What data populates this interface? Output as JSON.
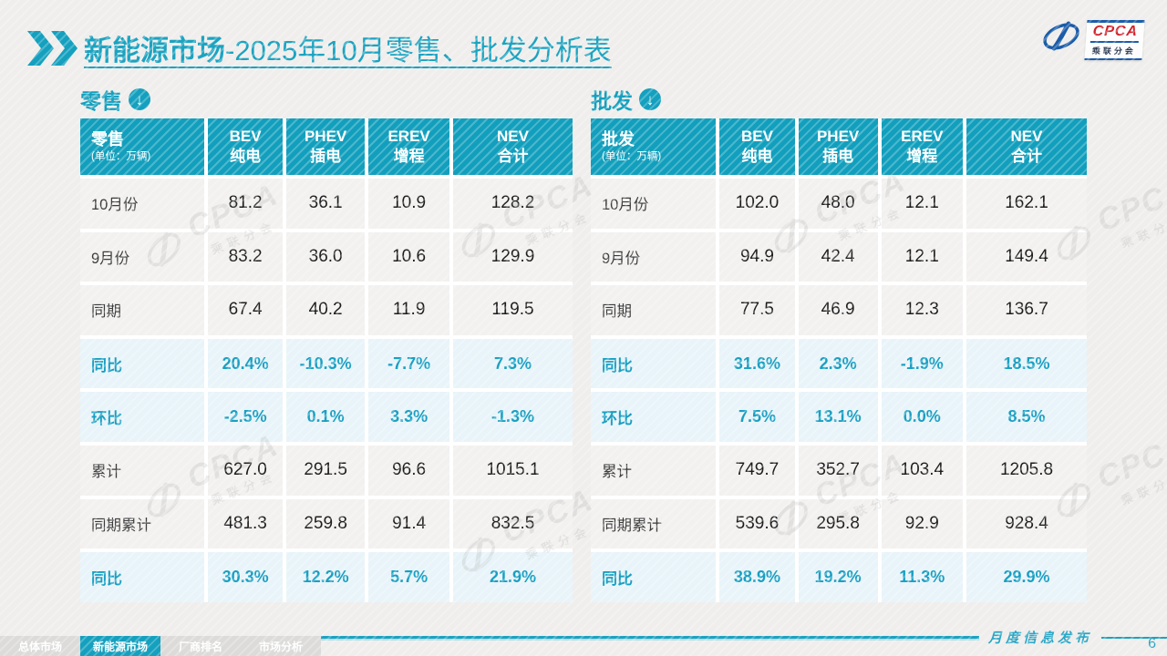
{
  "page": {
    "title_bold": "新能源市场",
    "title_rest": "-2025年10月零售、批发分析表",
    "footer_caption": "月度信息发布",
    "page_number": "6",
    "arrow_glyph": "↓"
  },
  "colors": {
    "teal": "#14A0BE",
    "header_bg": "#129FBD",
    "highlight_bg": "#E8F4F9",
    "percent_text": "#199FC2",
    "logo_blue": "#1A5CA8",
    "logo_red": "#D1222A"
  },
  "logo": {
    "en": "CPCA",
    "cn": "乘联分会"
  },
  "watermark": {
    "en": "CPCA",
    "cn": "乘联分会"
  },
  "tabs": [
    {
      "label": "总体市场",
      "active": false
    },
    {
      "label": "新能源市场",
      "active": true
    },
    {
      "label": "厂商排名",
      "active": false
    },
    {
      "label": "市场分析",
      "active": false
    }
  ],
  "tables": [
    {
      "section_label": "零售",
      "header": {
        "title": "零售",
        "unit": "(单位：万辆)",
        "cols": [
          [
            "BEV",
            "纯电"
          ],
          [
            "PHEV",
            "插电"
          ],
          [
            "EREV",
            "增程"
          ],
          [
            "NEV",
            "合计"
          ]
        ]
      },
      "rows": [
        {
          "label": "10月份",
          "highlight": false,
          "values": [
            "81.2",
            "36.1",
            "10.9",
            "128.2"
          ]
        },
        {
          "label": "9月份",
          "highlight": false,
          "values": [
            "83.2",
            "36.0",
            "10.6",
            "129.9"
          ]
        },
        {
          "label": "同期",
          "highlight": false,
          "values": [
            "67.4",
            "40.2",
            "11.9",
            "119.5"
          ]
        },
        {
          "label": "同比",
          "highlight": true,
          "values": [
            "20.4%",
            "-10.3%",
            "-7.7%",
            "7.3%"
          ]
        },
        {
          "label": "环比",
          "highlight": true,
          "values": [
            "-2.5%",
            "0.1%",
            "3.3%",
            "-1.3%"
          ]
        },
        {
          "label": "累计",
          "highlight": false,
          "values": [
            "627.0",
            "291.5",
            "96.6",
            "1015.1"
          ]
        },
        {
          "label": "同期累计",
          "highlight": false,
          "values": [
            "481.3",
            "259.8",
            "91.4",
            "832.5"
          ]
        },
        {
          "label": "同比",
          "highlight": true,
          "values": [
            "30.3%",
            "12.2%",
            "5.7%",
            "21.9%"
          ]
        }
      ]
    },
    {
      "section_label": "批发",
      "header": {
        "title": "批发",
        "unit": "(单位：万辆)",
        "cols": [
          [
            "BEV",
            "纯电"
          ],
          [
            "PHEV",
            "插电"
          ],
          [
            "EREV",
            "增程"
          ],
          [
            "NEV",
            "合计"
          ]
        ]
      },
      "rows": [
        {
          "label": "10月份",
          "highlight": false,
          "values": [
            "102.0",
            "48.0",
            "12.1",
            "162.1"
          ]
        },
        {
          "label": "9月份",
          "highlight": false,
          "values": [
            "94.9",
            "42.4",
            "12.1",
            "149.4"
          ]
        },
        {
          "label": "同期",
          "highlight": false,
          "values": [
            "77.5",
            "46.9",
            "12.3",
            "136.7"
          ]
        },
        {
          "label": "同比",
          "highlight": true,
          "values": [
            "31.6%",
            "2.3%",
            "-1.9%",
            "18.5%"
          ]
        },
        {
          "label": "环比",
          "highlight": true,
          "values": [
            "7.5%",
            "13.1%",
            "0.0%",
            "8.5%"
          ]
        },
        {
          "label": "累计",
          "highlight": false,
          "values": [
            "749.7",
            "352.7",
            "103.4",
            "1205.8"
          ]
        },
        {
          "label": "同期累计",
          "highlight": false,
          "values": [
            "539.6",
            "295.8",
            "92.9",
            "928.4"
          ]
        },
        {
          "label": "同比",
          "highlight": true,
          "values": [
            "38.9%",
            "19.2%",
            "11.3%",
            "29.9%"
          ]
        }
      ]
    }
  ]
}
